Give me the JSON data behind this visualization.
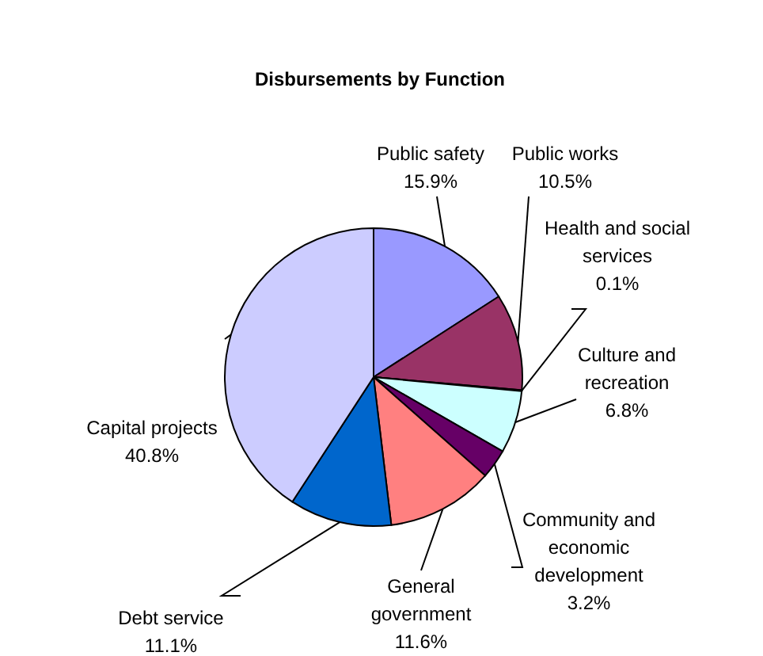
{
  "chart_data": {
    "type": "pie",
    "title": "Disbursements by Function",
    "categories": [
      "Public safety",
      "Public works",
      "Health and social services",
      "Culture and recreation",
      "Community and economic development",
      "General government",
      "Debt service",
      "Capital projects"
    ],
    "values": [
      15.9,
      10.5,
      0.1,
      6.8,
      3.2,
      11.6,
      11.1,
      40.8
    ],
    "value_labels": [
      "15.9%",
      "10.5%",
      "0.1%",
      "6.8%",
      "3.2%",
      "11.6%",
      "11.1%",
      "40.8%"
    ],
    "colors": [
      "#9999ff",
      "#993366",
      "#ffffcc",
      "#ccffff",
      "#660066",
      "#ff8080",
      "#0066cc",
      "#ccccff"
    ]
  }
}
